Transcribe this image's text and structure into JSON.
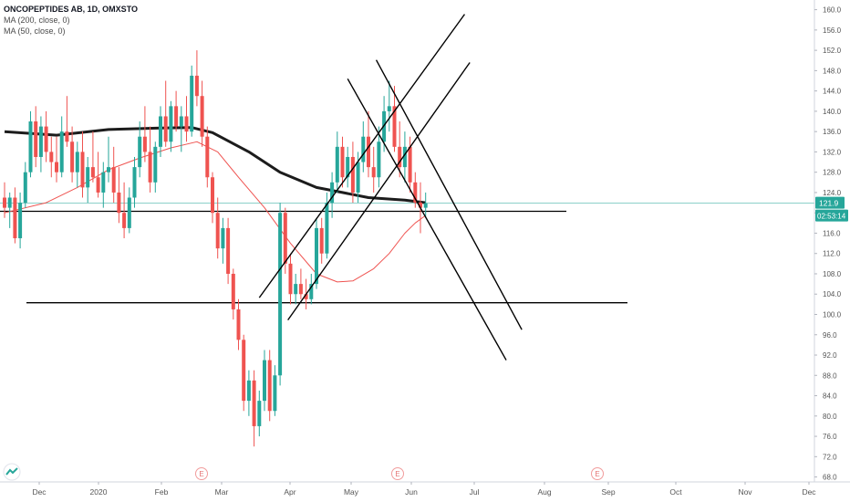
{
  "header": {
    "title": "ONCOPEPTIDES AB, 1D, OMXSTO",
    "ma200": "MA (200, close, 0)",
    "ma50": "MA (50, close, 0)"
  },
  "price_badge": "121.9",
  "time_badge": "02:53:14",
  "earnings_label": "E",
  "colors": {
    "up": "#26a69a",
    "down": "#ef5350",
    "ma200": "#1c1c1c",
    "ma50": "#ef5350",
    "price_line": "#26a69a"
  },
  "chart_data": {
    "type": "candlestick",
    "symbol": "ONCOPEPTIDES AB",
    "interval": "1D",
    "exchange": "OMXSTO",
    "ylim": [
      66,
      162
    ],
    "y_ticks": [
      68,
      72,
      76,
      80,
      84,
      88,
      92,
      96,
      100,
      104,
      108,
      112,
      116,
      120,
      124,
      128,
      132,
      136,
      140,
      144,
      148,
      152,
      156,
      160
    ],
    "x_ticks": [
      "Dec",
      "2020",
      "Feb",
      "Mar",
      "Apr",
      "May",
      "Jun",
      "Jul",
      "Aug",
      "Sep",
      "Oct",
      "Nov",
      "Dec"
    ],
    "last_price": 121.9,
    "candles": [
      [
        0,
        123,
        126,
        119,
        121
      ],
      [
        1,
        121,
        124,
        117,
        123
      ],
      [
        2,
        123,
        125,
        114,
        115
      ],
      [
        3,
        115,
        124,
        113,
        122
      ],
      [
        4,
        122,
        130,
        121,
        128
      ],
      [
        5,
        128,
        140,
        127,
        138
      ],
      [
        6,
        138,
        141,
        129,
        131
      ],
      [
        7,
        131,
        139,
        128,
        137
      ],
      [
        8,
        137,
        140,
        130,
        132
      ],
      [
        9,
        132,
        135,
        127,
        130
      ],
      [
        10,
        130,
        135,
        126,
        128
      ],
      [
        11,
        128,
        139,
        127,
        136
      ],
      [
        12,
        136,
        143,
        133,
        134
      ],
      [
        13,
        134,
        137,
        126,
        128
      ],
      [
        14,
        128,
        134,
        125,
        132
      ],
      [
        15,
        132,
        136,
        123,
        125
      ],
      [
        16,
        125,
        131,
        122,
        129
      ],
      [
        17,
        129,
        136,
        126,
        127
      ],
      [
        18,
        127,
        132,
        123,
        124
      ],
      [
        19,
        124,
        130,
        121,
        128
      ],
      [
        20,
        128,
        135,
        126,
        129
      ],
      [
        21,
        129,
        133,
        122,
        124
      ],
      [
        22,
        124,
        129,
        118,
        120
      ],
      [
        23,
        120,
        126,
        115,
        117
      ],
      [
        24,
        117,
        125,
        116,
        123
      ],
      [
        25,
        123,
        131,
        121,
        129
      ],
      [
        26,
        129,
        138,
        127,
        135
      ],
      [
        27,
        135,
        141,
        130,
        132
      ],
      [
        28,
        132,
        137,
        124,
        126
      ],
      [
        29,
        126,
        134,
        124,
        133
      ],
      [
        30,
        133,
        141,
        131,
        139
      ],
      [
        31,
        139,
        146,
        133,
        134
      ],
      [
        32,
        134,
        142,
        132,
        141
      ],
      [
        33,
        141,
        144,
        136,
        137
      ],
      [
        34,
        137,
        141,
        132,
        139
      ],
      [
        35,
        139,
        143,
        134,
        136
      ],
      [
        36,
        136,
        149,
        135,
        147
      ],
      [
        37,
        147,
        152,
        141,
        143
      ],
      [
        38,
        143,
        146,
        133,
        135
      ],
      [
        39,
        135,
        137,
        125,
        127
      ],
      [
        40,
        127,
        128,
        118,
        120
      ],
      [
        41,
        120,
        123,
        111,
        113
      ],
      [
        42,
        113,
        119,
        110,
        117
      ],
      [
        43,
        117,
        119,
        106,
        108
      ],
      [
        44,
        108,
        109,
        99,
        101
      ],
      [
        45,
        101,
        103,
        93,
        95
      ],
      [
        46,
        95,
        96,
        81,
        83
      ],
      [
        47,
        83,
        89,
        80,
        87
      ],
      [
        48,
        87,
        89,
        74,
        78
      ],
      [
        49,
        78,
        85,
        76,
        83
      ],
      [
        50,
        83,
        93,
        81,
        91
      ],
      [
        51,
        91,
        93,
        79,
        81
      ],
      [
        52,
        81,
        90,
        80,
        88
      ],
      [
        53,
        88,
        122,
        86,
        120
      ],
      [
        54,
        120,
        121,
        108,
        110
      ],
      [
        55,
        110,
        112,
        102,
        104
      ],
      [
        56,
        104,
        108,
        102,
        106
      ],
      [
        57,
        106,
        109,
        103,
        104
      ],
      [
        58,
        104,
        107,
        101,
        103
      ],
      [
        59,
        103,
        108,
        102,
        106
      ],
      [
        60,
        106,
        119,
        105,
        117
      ],
      [
        61,
        117,
        119,
        110,
        112
      ],
      [
        62,
        112,
        124,
        111,
        122
      ],
      [
        63,
        122,
        128,
        119,
        126
      ],
      [
        64,
        126,
        136,
        124,
        133
      ],
      [
        65,
        133,
        135,
        125,
        127
      ],
      [
        66,
        127,
        133,
        125,
        131
      ],
      [
        67,
        131,
        134,
        122,
        124
      ],
      [
        68,
        124,
        132,
        122,
        130
      ],
      [
        69,
        130,
        138,
        128,
        135
      ],
      [
        70,
        135,
        140,
        127,
        129
      ],
      [
        71,
        129,
        133,
        124,
        127
      ],
      [
        72,
        127,
        137,
        125,
        134
      ],
      [
        73,
        134,
        143,
        132,
        140
      ],
      [
        74,
        140,
        146,
        136,
        141
      ],
      [
        75,
        141,
        145,
        132,
        133
      ],
      [
        76,
        133,
        138,
        127,
        129
      ],
      [
        77,
        129,
        136,
        126,
        133
      ],
      [
        78,
        133,
        135,
        124,
        126
      ],
      [
        79,
        126,
        128,
        121,
        122
      ],
      [
        80,
        122,
        126,
        116,
        121
      ],
      [
        81,
        121,
        124,
        119,
        121.9
      ]
    ],
    "ma200": [
      [
        0,
        136
      ],
      [
        10,
        135.3
      ],
      [
        20,
        136.4
      ],
      [
        30,
        136.7
      ],
      [
        36,
        136.8
      ],
      [
        40,
        135.8
      ],
      [
        47,
        132
      ],
      [
        53,
        128
      ],
      [
        60,
        125
      ],
      [
        65,
        124
      ],
      [
        70,
        123
      ],
      [
        77,
        122.5
      ],
      [
        81,
        122
      ]
    ],
    "ma50": [
      [
        0,
        120
      ],
      [
        8,
        122
      ],
      [
        14,
        125
      ],
      [
        20,
        128.5
      ],
      [
        26,
        130.8
      ],
      [
        32,
        132.8
      ],
      [
        37,
        134
      ],
      [
        41,
        132
      ],
      [
        45,
        127
      ],
      [
        50,
        121
      ],
      [
        55,
        114
      ],
      [
        60,
        108
      ],
      [
        64,
        106.4
      ],
      [
        67,
        106.6
      ],
      [
        71,
        109
      ],
      [
        74,
        112
      ],
      [
        77,
        116
      ],
      [
        79,
        118
      ],
      [
        81,
        119.5
      ]
    ],
    "horizontal_levels": [
      120.3,
      102.3
    ],
    "trendlines": [
      {
        "from": [
          49,
          103.3
        ],
        "to": [
          88.5,
          159.1
        ]
      },
      {
        "from": [
          54.5,
          98.9
        ],
        "to": [
          89.5,
          149.6
        ]
      },
      {
        "from": [
          66,
          146.4
        ],
        "to": [
          96.5,
          91
        ]
      },
      {
        "from": [
          71.5,
          150.1
        ],
        "to": [
          99.5,
          97
        ]
      }
    ],
    "earnings_markers": [
      "Feb",
      "May",
      "Aug"
    ],
    "grid": false,
    "legend_position": "top-left"
  }
}
